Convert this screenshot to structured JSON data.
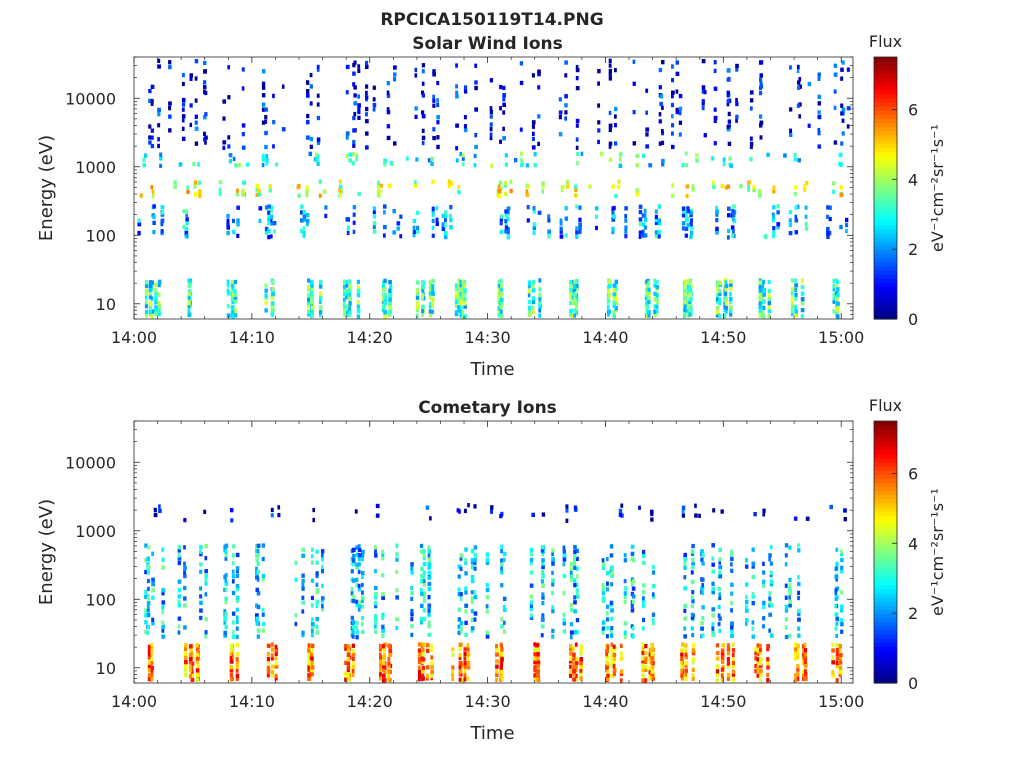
{
  "figure": {
    "filename": "RPCICA150119T14.PNG",
    "colorbar_label": "eV⁻¹cm⁻²sr⁻¹s⁻¹"
  },
  "chart_data": [
    {
      "type": "heatmap",
      "title": "Solar Wind Ions",
      "xlabel": "Time",
      "ylabel": "Energy (eV)",
      "yscale": "log",
      "ylim": [
        6,
        40000
      ],
      "xlim": [
        "14:00",
        "15:01"
      ],
      "x_ticks": [
        "14:00",
        "14:10",
        "14:20",
        "14:30",
        "14:40",
        "14:50",
        "15:00"
      ],
      "y_ticks": [
        10,
        100,
        1000,
        10000
      ],
      "colorbar": {
        "title": "Flux",
        "range": [
          0,
          7.5
        ],
        "ticks": [
          0,
          2,
          4,
          6
        ],
        "colormap": "jet"
      },
      "sweep_minutes": [
        1.5,
        4.8,
        8.5,
        11.6,
        15.0,
        18.2,
        21.3,
        24.5,
        27.6,
        31.0,
        34.1,
        37.3,
        40.5,
        43.6,
        46.8,
        50.0,
        53.2,
        56.4,
        59.5
      ],
      "bands": [
        {
          "energy_range": [
            7,
            25
          ],
          "typical_level": 3.2
        },
        {
          "energy_range": [
            100,
            300
          ],
          "typical_level": 2.2
        },
        {
          "energy_range": [
            400,
            700
          ],
          "typical_level": 4.3
        },
        {
          "energy_range": [
            1100,
            1800
          ],
          "typical_level": 3.0
        },
        {
          "energy_range": [
            2000,
            40000
          ],
          "typical_level": 0.8
        }
      ]
    },
    {
      "type": "heatmap",
      "title": "Cometary Ions",
      "xlabel": "Time",
      "ylabel": "Energy (eV)",
      "yscale": "log",
      "ylim": [
        6,
        40000
      ],
      "xlim": [
        "14:00",
        "15:01"
      ],
      "x_ticks": [
        "14:00",
        "14:10",
        "14:20",
        "14:30",
        "14:40",
        "14:50",
        "15:00"
      ],
      "y_ticks": [
        10,
        100,
        1000,
        10000
      ],
      "colorbar": {
        "title": "Flux",
        "range": [
          0,
          7.5
        ],
        "ticks": [
          0,
          2,
          4,
          6
        ],
        "colormap": "jet"
      },
      "sweep_minutes": [
        1.5,
        4.8,
        8.5,
        11.6,
        15.0,
        18.2,
        21.3,
        24.5,
        27.6,
        31.0,
        34.1,
        37.3,
        40.5,
        43.6,
        46.8,
        50.0,
        53.2,
        56.4,
        59.5
      ],
      "bands": [
        {
          "energy_range": [
            7,
            25
          ],
          "typical_level": 5.6
        },
        {
          "energy_range": [
            30,
            700
          ],
          "typical_level": 2.5
        },
        {
          "energy_range": [
            1500,
            2700
          ],
          "typical_level": 0.6
        }
      ]
    }
  ]
}
